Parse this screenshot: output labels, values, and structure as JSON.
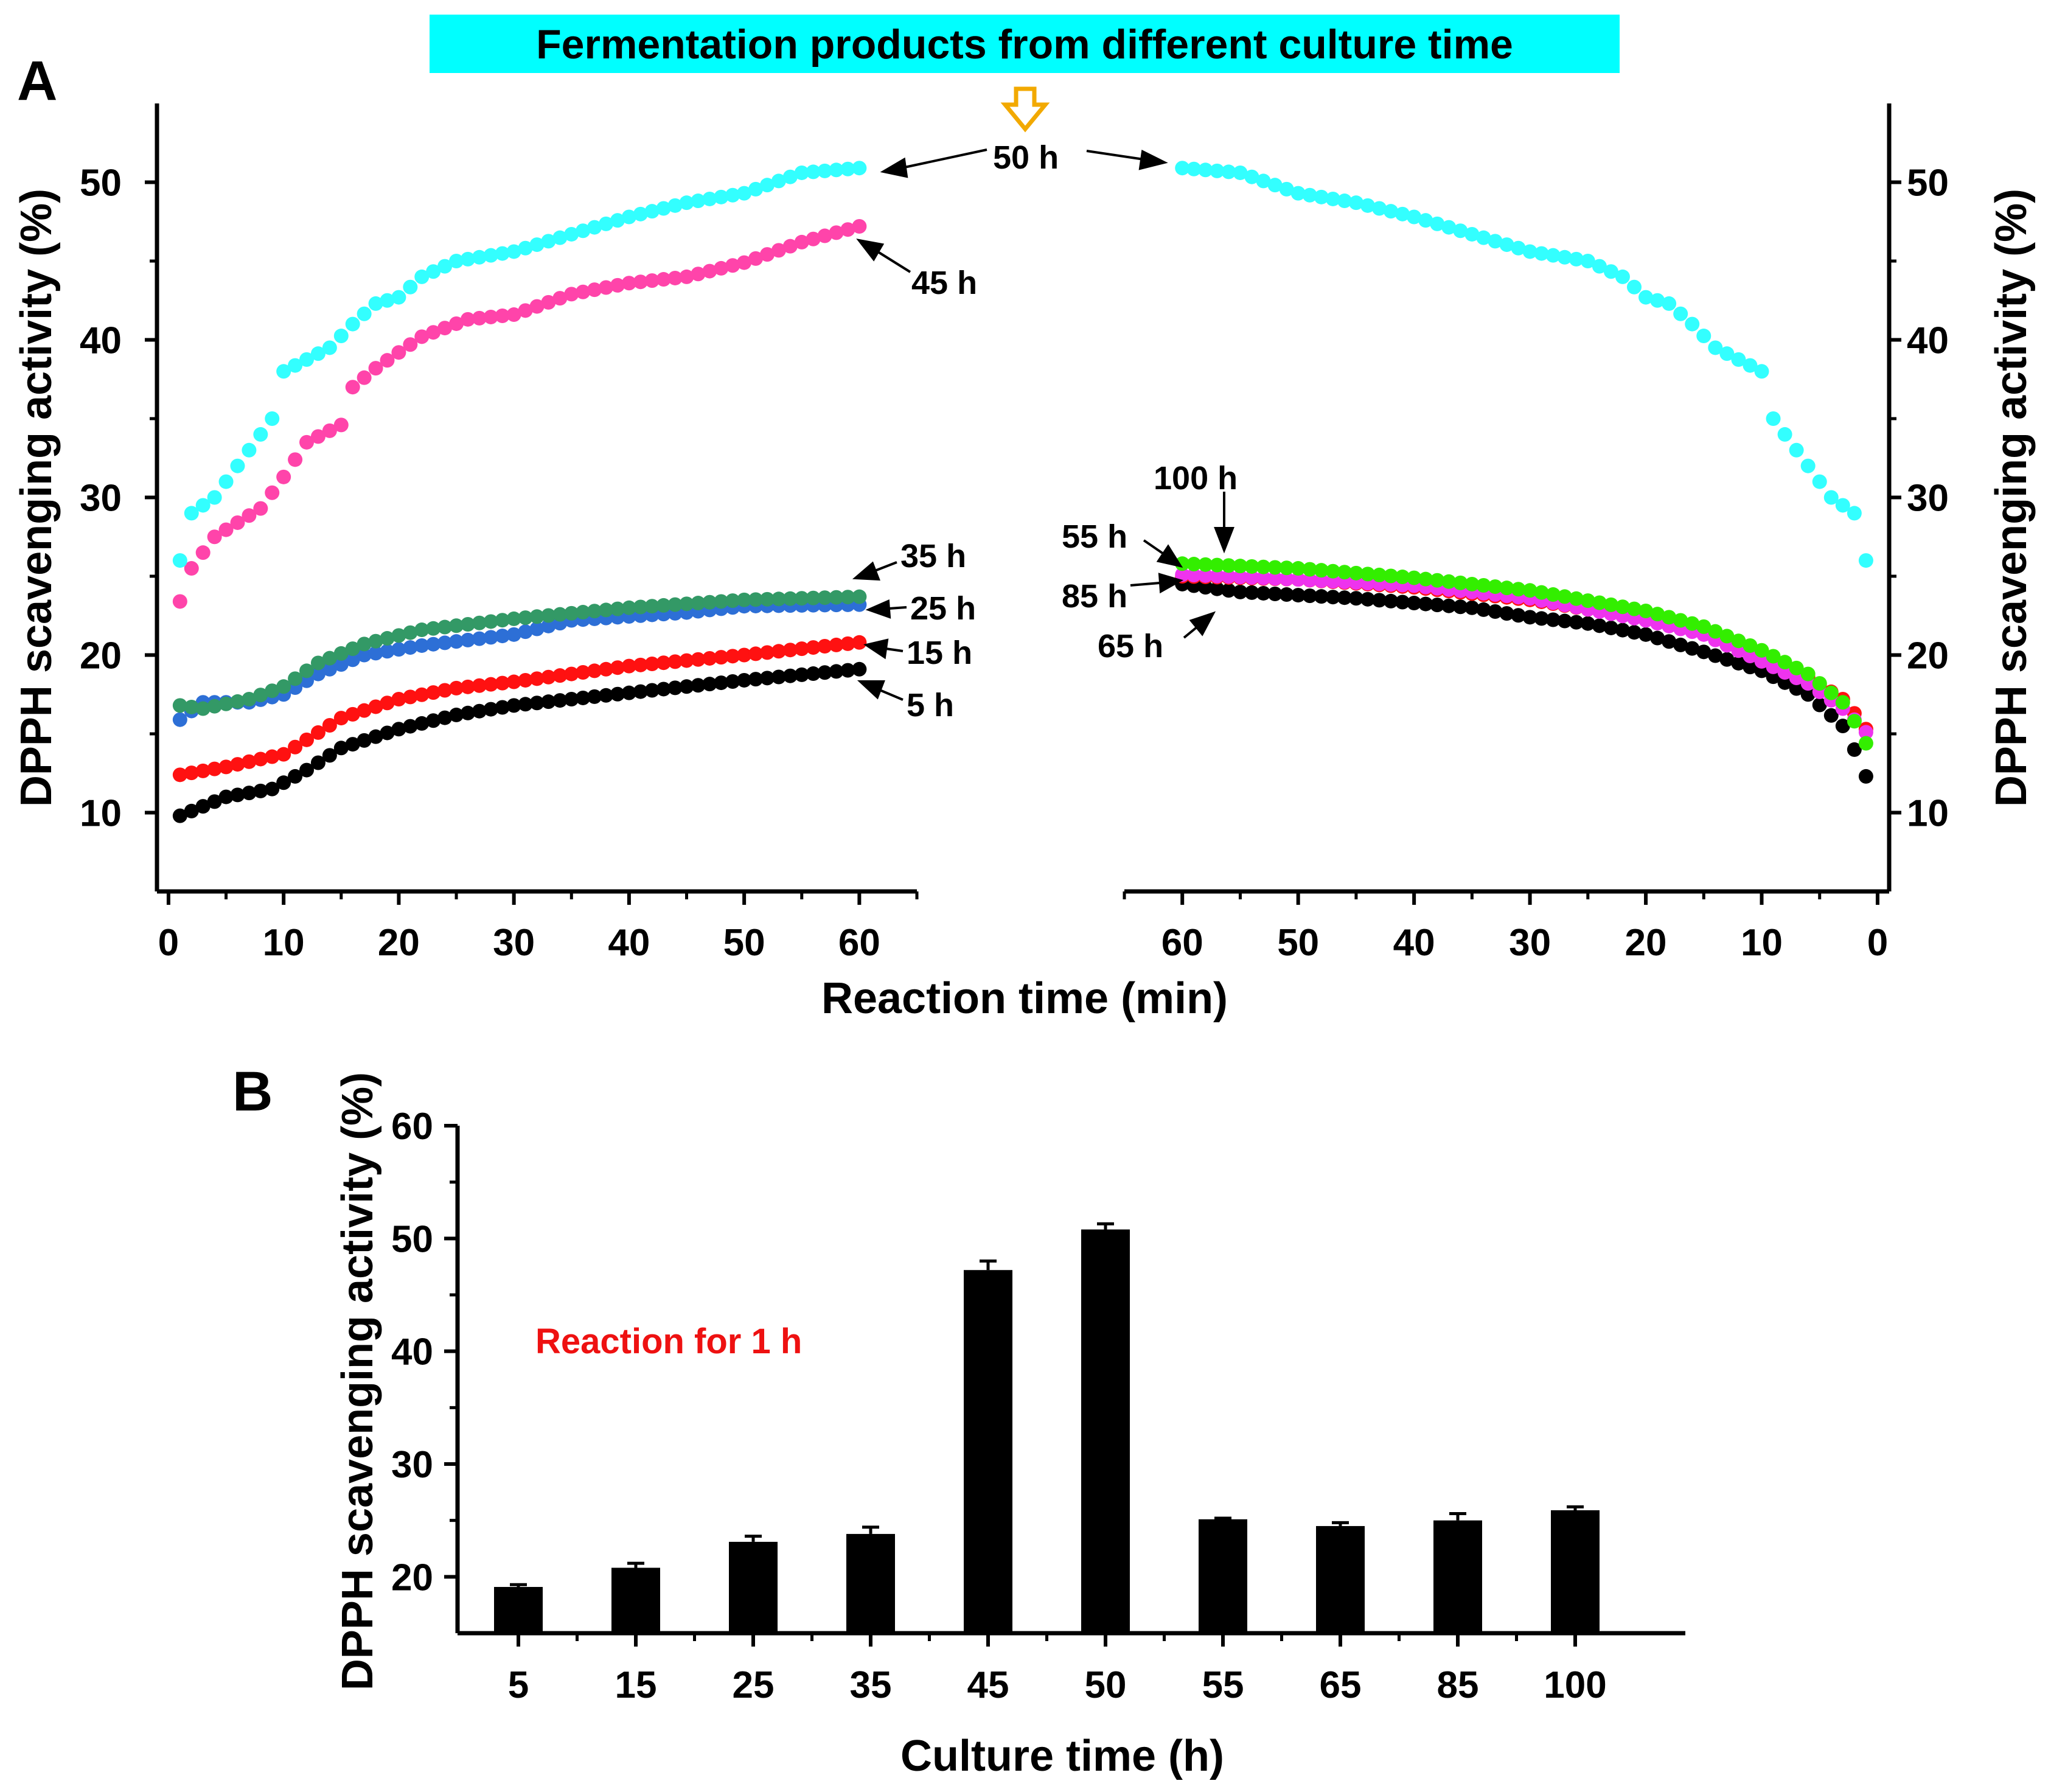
{
  "banner": "Fermentation products from different culture time",
  "chart_data": [
    {
      "panel": "A",
      "type": "scatter",
      "xlabel": "Reaction time (min)",
      "ylabel": "DPPH scavenging activity (%)",
      "ylabel_right": "DPPH scavenging activity (%)",
      "ylim": [
        5,
        55
      ],
      "yticks": [
        10,
        20,
        30,
        40,
        50
      ],
      "left_panel": {
        "xlim": [
          -1,
          65
        ],
        "xticks": [
          0,
          10,
          20,
          30,
          40,
          50,
          60
        ],
        "series": [
          {
            "name": "50 h",
            "label": "50 h",
            "color": "#33ffff",
            "x_start": 1,
            "x_end": 60,
            "anchors": [
              [
                1,
                26
              ],
              [
                2,
                29
              ],
              [
                4,
                30
              ],
              [
                6,
                32
              ],
              [
                8,
                34
              ],
              [
                9,
                35
              ],
              [
                10,
                38
              ],
              [
                14,
                39.5
              ],
              [
                16,
                41
              ],
              [
                18,
                42.3
              ],
              [
                20,
                42.7
              ],
              [
                22,
                44
              ],
              [
                25,
                45
              ],
              [
                30,
                45.6
              ],
              [
                35,
                46.7
              ],
              [
                40,
                47.8
              ],
              [
                45,
                48.7
              ],
              [
                50,
                49.3
              ],
              [
                55,
                50.6
              ],
              [
                60,
                50.9
              ]
            ]
          },
          {
            "name": "45 h",
            "label": "45 h",
            "color": "#ff44aa",
            "x_start": 1,
            "x_end": 60,
            "anchors": [
              [
                1,
                23.4
              ],
              [
                2,
                25.5
              ],
              [
                4,
                27.5
              ],
              [
                8,
                29.3
              ],
              [
                10,
                31.3
              ],
              [
                12,
                33.5
              ],
              [
                15,
                34.6
              ],
              [
                16,
                37
              ],
              [
                18,
                38.2
              ],
              [
                22,
                40.2
              ],
              [
                26,
                41.3
              ],
              [
                30,
                41.6
              ],
              [
                35,
                42.9
              ],
              [
                40,
                43.6
              ],
              [
                45,
                44
              ],
              [
                50,
                44.9
              ],
              [
                55,
                46.2
              ],
              [
                60,
                47.2
              ]
            ]
          },
          {
            "name": "35 h",
            "label": "35 h",
            "color": "#339966",
            "x_start": 1,
            "x_end": 60,
            "anchors": [
              [
                1,
                16.8
              ],
              [
                3,
                16.6
              ],
              [
                7,
                17.2
              ],
              [
                10,
                18
              ],
              [
                13,
                19.5
              ],
              [
                17,
                20.7
              ],
              [
                22,
                21.6
              ],
              [
                30,
                22.3
              ],
              [
                40,
                23
              ],
              [
                50,
                23.5
              ],
              [
                60,
                23.7
              ]
            ]
          },
          {
            "name": "25 h",
            "label": "25 h",
            "color": "#2d6fd6",
            "x_start": 1,
            "x_end": 60,
            "anchors": [
              [
                1,
                15.9
              ],
              [
                3,
                17
              ],
              [
                7,
                17
              ],
              [
                10,
                17.5
              ],
              [
                13,
                18.8
              ],
              [
                17,
                20
              ],
              [
                22,
                20.6
              ],
              [
                30,
                21.3
              ],
              [
                35,
                22.2
              ],
              [
                45,
                22.7
              ],
              [
                50,
                23.1
              ],
              [
                60,
                23.2
              ]
            ]
          },
          {
            "name": "15 h",
            "label": "15 h",
            "color": "#ff1111",
            "x_start": 1,
            "x_end": 60,
            "anchors": [
              [
                1,
                12.4
              ],
              [
                5,
                12.9
              ],
              [
                8,
                13.4
              ],
              [
                10,
                13.7
              ],
              [
                15,
                16
              ],
              [
                20,
                17.2
              ],
              [
                25,
                17.9
              ],
              [
                30,
                18.3
              ],
              [
                40,
                19.3
              ],
              [
                50,
                20
              ],
              [
                60,
                20.8
              ]
            ]
          },
          {
            "name": "5 h",
            "label": "5 h",
            "color": "#000000",
            "x_start": 1,
            "x_end": 60,
            "anchors": [
              [
                1,
                9.8
              ],
              [
                5,
                11
              ],
              [
                9,
                11.5
              ],
              [
                12,
                12.7
              ],
              [
                15,
                14.1
              ],
              [
                20,
                15.3
              ],
              [
                25,
                16.2
              ],
              [
                30,
                16.8
              ],
              [
                40,
                17.6
              ],
              [
                50,
                18.4
              ],
              [
                60,
                19.1
              ]
            ]
          }
        ]
      },
      "right_panel": {
        "xlim": [
          65,
          -1
        ],
        "xticks": [
          60,
          50,
          40,
          30,
          20,
          10,
          0
        ],
        "series": [
          {
            "name": "50 h",
            "label": "50 h",
            "color": "#33ffff",
            "x_start": 60,
            "x_end": 1,
            "anchors": [
              [
                60,
                50.9
              ],
              [
                55,
                50.6
              ],
              [
                50,
                49.3
              ],
              [
                45,
                48.7
              ],
              [
                40,
                47.8
              ],
              [
                35,
                46.7
              ],
              [
                30,
                45.6
              ],
              [
                25,
                45
              ],
              [
                22,
                44
              ],
              [
                20,
                42.7
              ],
              [
                18,
                42.3
              ],
              [
                16,
                41
              ],
              [
                14,
                39.5
              ],
              [
                10,
                38
              ],
              [
                9,
                35
              ],
              [
                8,
                34
              ],
              [
                6,
                32
              ],
              [
                4,
                30
              ],
              [
                2,
                29
              ],
              [
                1,
                26
              ]
            ]
          },
          {
            "name": "100 h",
            "label": "100 h",
            "color": "#33ee00",
            "x_start": 60,
            "x_end": 1,
            "anchors": [
              [
                60,
                25.8
              ],
              [
                50,
                25.5
              ],
              [
                40,
                24.9
              ],
              [
                30,
                24.1
              ],
              [
                20,
                22.8
              ],
              [
                15,
                21.8
              ],
              [
                10,
                20.3
              ],
              [
                6,
                18.8
              ],
              [
                3,
                17
              ],
              [
                2,
                15.8
              ],
              [
                1,
                14.4
              ]
            ]
          },
          {
            "name": "55 h",
            "label": "55 h",
            "color": "#ee33ee",
            "x_start": 60,
            "x_end": 1,
            "anchors": [
              [
                60,
                25.1
              ],
              [
                50,
                24.8
              ],
              [
                40,
                24.4
              ],
              [
                30,
                23.6
              ],
              [
                20,
                22.2
              ],
              [
                15,
                21.3
              ],
              [
                10,
                19.6
              ],
              [
                6,
                18.2
              ],
              [
                3,
                16.6
              ],
              [
                2,
                15.9
              ],
              [
                1,
                15.1
              ]
            ]
          },
          {
            "name": "85 h",
            "label": "85 h",
            "color": "#ff1111",
            "x_start": 60,
            "x_end": 1,
            "anchors": [
              [
                60,
                25
              ],
              [
                50,
                24.8
              ],
              [
                40,
                24.3
              ],
              [
                30,
                23.5
              ],
              [
                20,
                22.3
              ],
              [
                15,
                21.4
              ],
              [
                10,
                20
              ],
              [
                6,
                18.6
              ],
              [
                3,
                17.2
              ],
              [
                2,
                16.3
              ],
              [
                1,
                15.3
              ]
            ]
          },
          {
            "name": "65 h",
            "label": "65 h",
            "color": "#000000",
            "x_start": 60,
            "x_end": 1,
            "anchors": [
              [
                60,
                24.5
              ],
              [
                55,
                24
              ],
              [
                50,
                23.8
              ],
              [
                45,
                23.6
              ],
              [
                40,
                23.3
              ],
              [
                35,
                23
              ],
              [
                30,
                22.4
              ],
              [
                25,
                22
              ],
              [
                20,
                21.3
              ],
              [
                15,
                20.2
              ],
              [
                10,
                19
              ],
              [
                6,
                17.5
              ],
              [
                3,
                15.5
              ],
              [
                2,
                14
              ],
              [
                1,
                12.3
              ]
            ]
          }
        ]
      }
    },
    {
      "panel": "B",
      "type": "bar",
      "xlabel": "Culture time (h)",
      "ylabel": "DPPH scavenging activity (%)",
      "ylim": [
        15,
        60
      ],
      "yticks": [
        20,
        30,
        40,
        50,
        60
      ],
      "categories": [
        "5",
        "15",
        "25",
        "35",
        "45",
        "50",
        "55",
        "65",
        "85",
        "100"
      ],
      "values": [
        19.1,
        20.8,
        23.1,
        23.8,
        47.2,
        50.8,
        25.1,
        24.5,
        25.0,
        25.9
      ],
      "errors": [
        0.2,
        0.4,
        0.5,
        0.6,
        0.8,
        0.5,
        0.1,
        0.3,
        0.6,
        0.3
      ],
      "annotation": "Reaction for 1 h"
    }
  ]
}
